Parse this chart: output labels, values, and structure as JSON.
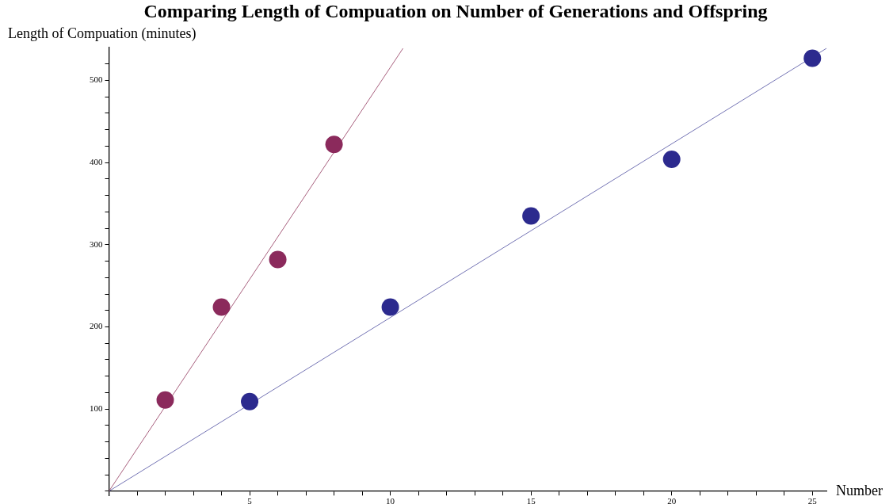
{
  "chart_data": {
    "type": "scatter",
    "title": "Comparing Length of Compuation on Number of Generations and Offspring",
    "xlabel": "Number",
    "ylabel": "Length of Compuation (minutes)",
    "xlim": [
      0,
      25.5
    ],
    "ylim": [
      -5,
      540
    ],
    "xticks": [
      {
        "value": 0,
        "label": null
      },
      {
        "value": 1,
        "label": null
      },
      {
        "value": 2,
        "label": null
      },
      {
        "value": 3,
        "label": null
      },
      {
        "value": 4,
        "label": null
      },
      5,
      {
        "value": 6,
        "label": null
      },
      {
        "value": 7,
        "label": null
      },
      {
        "value": 8,
        "label": null
      },
      {
        "value": 9,
        "label": null
      },
      10,
      {
        "value": 11,
        "label": null
      },
      {
        "value": 12,
        "label": null
      },
      {
        "value": 13,
        "label": null
      },
      {
        "value": 14,
        "label": null
      },
      15,
      {
        "value": 16,
        "label": null
      },
      {
        "value": 17,
        "label": null
      },
      {
        "value": 18,
        "label": null
      },
      {
        "value": 19,
        "label": null
      },
      20,
      {
        "value": 21,
        "label": null
      },
      {
        "value": 22,
        "label": null
      },
      {
        "value": 23,
        "label": null
      },
      {
        "value": 24,
        "label": null
      },
      25
    ],
    "yticks": [
      {
        "value": 0,
        "label": null
      },
      {
        "value": 20,
        "label": null
      },
      {
        "value": 40,
        "label": null
      },
      {
        "value": 60,
        "label": null
      },
      {
        "value": 80,
        "label": null
      },
      100,
      {
        "value": 120,
        "label": null
      },
      {
        "value": 140,
        "label": null
      },
      {
        "value": 160,
        "label": null
      },
      {
        "value": 180,
        "label": null
      },
      200,
      {
        "value": 220,
        "label": null
      },
      {
        "value": 240,
        "label": null
      },
      {
        "value": 260,
        "label": null
      },
      {
        "value": 280,
        "label": null
      },
      300,
      {
        "value": 320,
        "label": null
      },
      {
        "value": 340,
        "label": null
      },
      {
        "value": 360,
        "label": null
      },
      {
        "value": 380,
        "label": null
      },
      400,
      {
        "value": 420,
        "label": null
      },
      {
        "value": 440,
        "label": null
      },
      {
        "value": 460,
        "label": null
      },
      {
        "value": 480,
        "label": null
      },
      500,
      {
        "value": 520,
        "label": null
      }
    ],
    "series": [
      {
        "type": "line",
        "marker": "none",
        "color": "#a8607e",
        "x": [
          0,
          10.45
        ],
        "values": [
          0,
          539
        ]
      },
      {
        "type": "line",
        "marker": "none",
        "color": "#7474b4",
        "x": [
          0,
          25.5
        ],
        "values": [
          0,
          539
        ]
      },
      {
        "marker": "circle",
        "color": "#8b2a5c",
        "x": [
          2,
          4,
          6,
          8
        ],
        "values": [
          111,
          224,
          282,
          422
        ]
      },
      {
        "marker": "circle",
        "color": "#2c2a8e",
        "x": [
          5,
          10,
          15,
          20,
          25
        ],
        "values": [
          109,
          224,
          335,
          404,
          527
        ]
      }
    ]
  }
}
